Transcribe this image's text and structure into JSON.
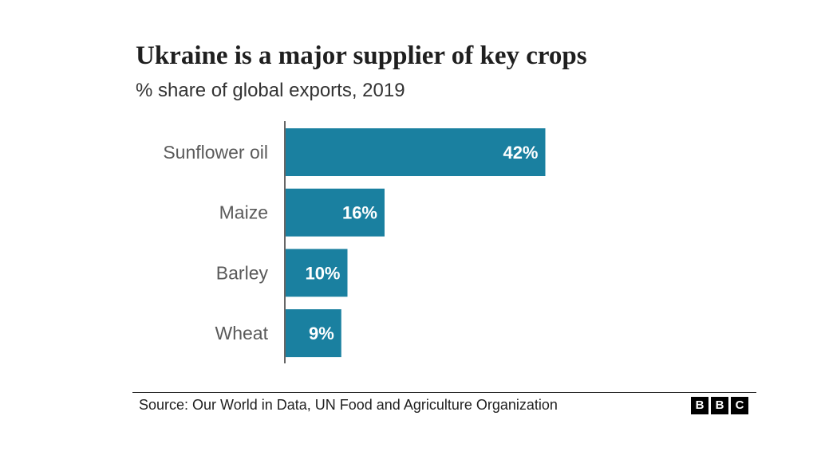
{
  "chart_data": {
    "type": "bar",
    "orientation": "horizontal",
    "title": "Ukraine is a major supplier of key crops",
    "subtitle": "% share of global exports, 2019",
    "categories": [
      "Sunflower oil",
      "Maize",
      "Barley",
      "Wheat"
    ],
    "values": [
      42,
      16,
      10,
      9
    ],
    "value_labels": [
      "42%",
      "16%",
      "10%",
      "9%"
    ],
    "bar_color": "#1a80a0",
    "grid": false,
    "legend": "none"
  },
  "footer": {
    "source": "Source: Our World in Data, UN Food and Agriculture Organization",
    "logo_letters": [
      "B",
      "B",
      "C"
    ]
  }
}
